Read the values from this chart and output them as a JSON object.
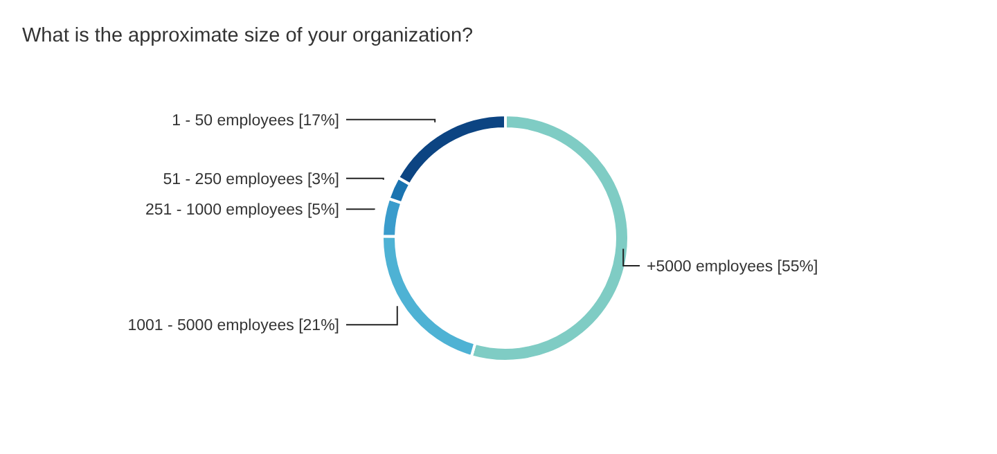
{
  "chart_data": {
    "type": "donut",
    "title": "What is the approximate size of your organization?",
    "categories": [
      "+5000 employees",
      "1001 - 5000 employees",
      "251 - 1000 employees",
      "51 - 250 employees",
      "1 - 50 employees"
    ],
    "values": [
      55,
      21,
      5,
      3,
      17
    ],
    "value_labels": [
      "[55%]",
      "[21%]",
      "[5%]",
      "[3%]",
      "[17%]"
    ],
    "colors": [
      "#7fccc4",
      "#4eb2d4",
      "#3a9ccc",
      "#1a73b0",
      "#0c4482"
    ],
    "legend": false
  }
}
